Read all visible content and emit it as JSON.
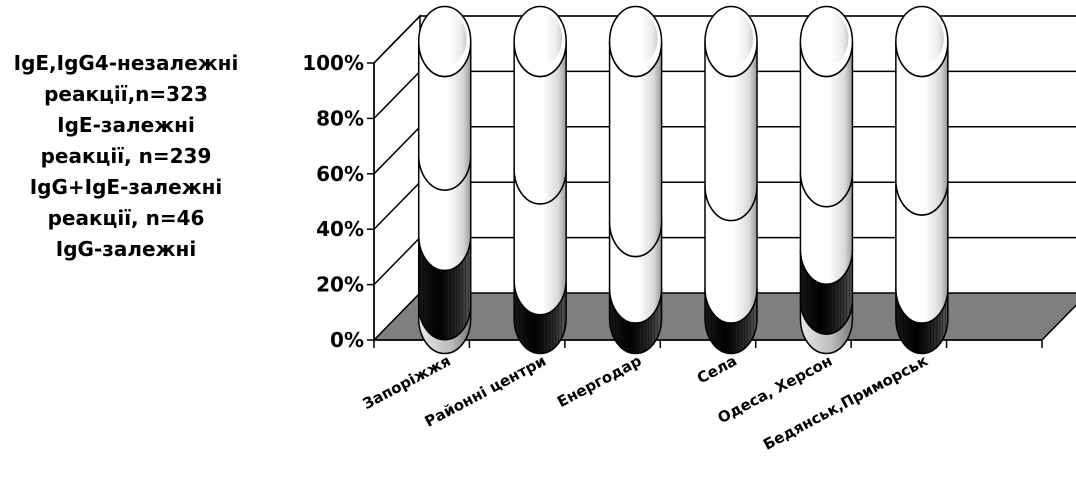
{
  "chart_data": {
    "type": "bar",
    "style": "3d-stacked-percent-cylinder",
    "title": "",
    "xlabel": "",
    "ylabel": "",
    "ylim": [
      0,
      100
    ],
    "y_tick_labels": [
      "0%",
      "20%",
      "40%",
      "60%",
      "80%",
      "100%"
    ],
    "grid": true,
    "legend_position": "left",
    "legend_text_lines": [
      "IgE,IgG4-незалежні",
      "реакції,n=323",
      "IgE-залежні",
      "реакції, n=239",
      "IgG+IgE-залежні",
      "реакції, n=46",
      "IgG-залежні"
    ],
    "categories": [
      "Запоріжжя",
      "Районні центри",
      "Енергодар",
      "Села",
      "Одеса, Херсон",
      "Бедянськ,Приморськ"
    ],
    "series": [
      {
        "name": "IgG-залежні",
        "color": "#bfbfbf",
        "values": [
          5,
          0,
          0,
          0,
          7,
          0
        ]
      },
      {
        "name": "IgG+IgE-залежні реакції, n=46",
        "color": "#111111",
        "values": [
          25,
          14,
          11,
          11,
          18,
          11
        ]
      },
      {
        "name": "IgE-залежні реакції, n=239",
        "color": "#ffffff",
        "values": [
          29,
          40,
          24,
          37,
          28,
          39
        ]
      },
      {
        "name": "IgE,IgG4-незалежні реакції,n=323",
        "color": "#ffffff",
        "values": [
          41,
          46,
          65,
          52,
          47,
          50
        ]
      }
    ]
  }
}
